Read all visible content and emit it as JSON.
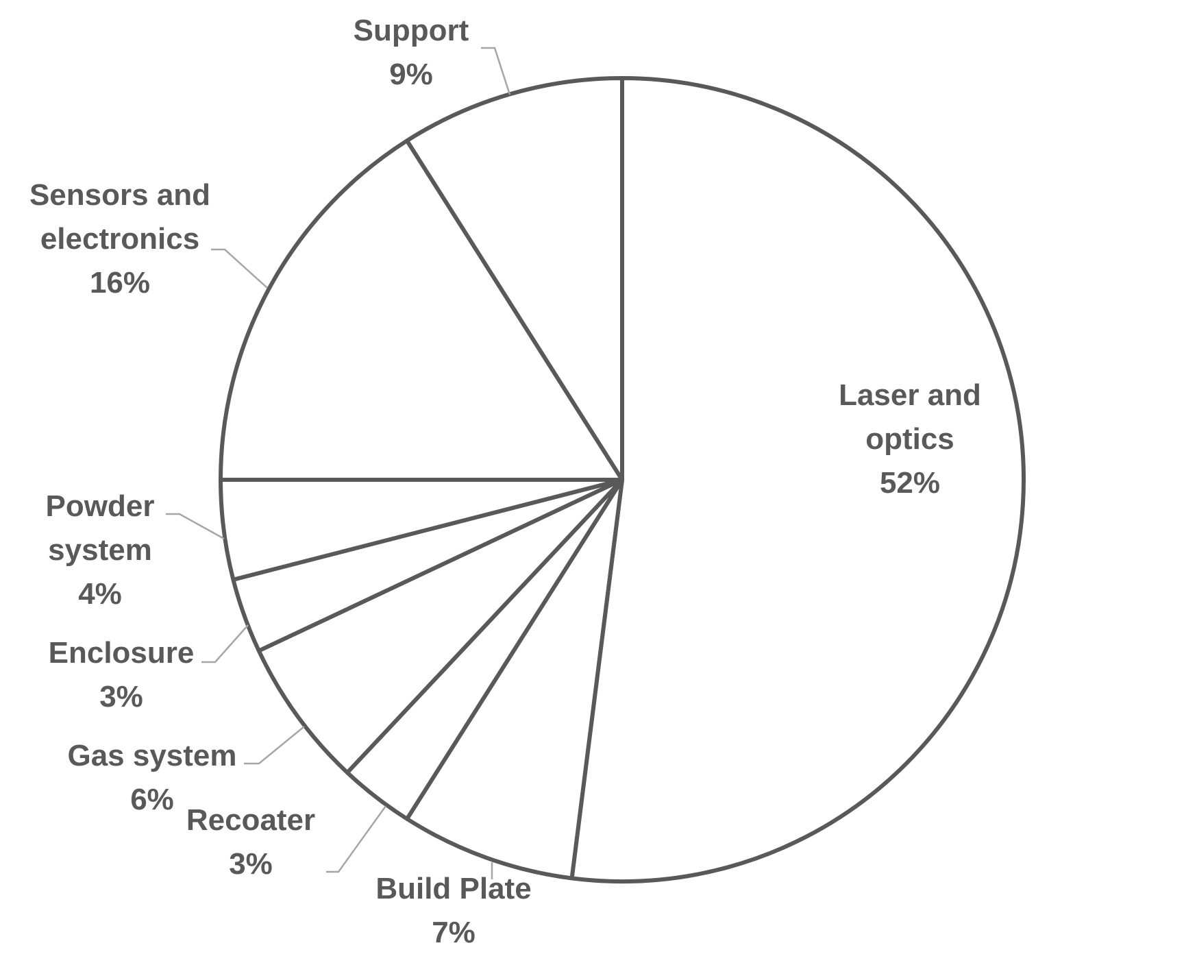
{
  "chart_data": {
    "type": "pie",
    "slices": [
      {
        "label": [
          "Laser and",
          "optics"
        ],
        "percent_label": "52%",
        "value": 52
      },
      {
        "label": [
          "Build Plate"
        ],
        "percent_label": "7%",
        "value": 7
      },
      {
        "label": [
          "Recoater"
        ],
        "percent_label": "3%",
        "value": 3
      },
      {
        "label": [
          "Gas system"
        ],
        "percent_label": "6%",
        "value": 6
      },
      {
        "label": [
          "Enclosure"
        ],
        "percent_label": "3%",
        "value": 3
      },
      {
        "label": [
          "Powder",
          "system"
        ],
        "percent_label": "4%",
        "value": 4
      },
      {
        "label": [
          "Sensors and",
          "electronics"
        ],
        "percent_label": "16%",
        "value": 16
      },
      {
        "label": [
          "Support"
        ],
        "percent_label": "9%",
        "value": 9
      }
    ],
    "start_angle": "12 o'clock",
    "direction": "clockwise",
    "colors": {
      "slice_fill": "#ffffff",
      "slice_stroke": "#595959",
      "text": "#595959",
      "leader_line": "#a6a6a6"
    }
  }
}
